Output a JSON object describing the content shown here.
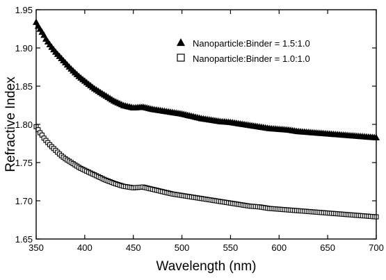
{
  "chart_data": {
    "type": "scatter",
    "title": "",
    "xlabel": "Wavelength (nm)",
    "ylabel": "Refractive Index",
    "xlim": [
      350,
      700
    ],
    "ylim": [
      1.65,
      1.95
    ],
    "xticks": [
      350,
      400,
      450,
      500,
      550,
      600,
      650,
      700
    ],
    "yticks": [
      1.65,
      1.7,
      1.75,
      1.8,
      1.85,
      1.9,
      1.95
    ],
    "legend_position": "top-right",
    "grid": false,
    "series": [
      {
        "name": "Nanoparticle:Binder = 1.5:1.0",
        "marker": "filled-triangle",
        "color": "#000000",
        "x": [
          350,
          352,
          354,
          356,
          358,
          360,
          365,
          370,
          375,
          380,
          385,
          390,
          395,
          400,
          410,
          420,
          430,
          440,
          450,
          460,
          470,
          480,
          490,
          500,
          510,
          520,
          530,
          540,
          550,
          560,
          570,
          580,
          590,
          600,
          610,
          620,
          630,
          640,
          650,
          660,
          670,
          680,
          690,
          700
        ],
        "y": [
          1.934,
          1.929,
          1.925,
          1.921,
          1.917,
          1.912,
          1.903,
          1.895,
          1.888,
          1.881,
          1.874,
          1.868,
          1.862,
          1.857,
          1.847,
          1.839,
          1.831,
          1.825,
          1.822,
          1.823,
          1.82,
          1.818,
          1.816,
          1.814,
          1.811,
          1.808,
          1.806,
          1.804,
          1.803,
          1.801,
          1.799,
          1.797,
          1.795,
          1.794,
          1.793,
          1.791,
          1.79,
          1.789,
          1.788,
          1.787,
          1.786,
          1.785,
          1.784,
          1.783
        ]
      },
      {
        "name": "Nanoparticle:Binder = 1.0:1.0",
        "marker": "open-square",
        "color": "#000000",
        "x": [
          350,
          352,
          354,
          356,
          358,
          360,
          365,
          370,
          375,
          380,
          385,
          390,
          395,
          400,
          410,
          420,
          430,
          440,
          450,
          460,
          470,
          480,
          490,
          500,
          510,
          520,
          530,
          540,
          550,
          560,
          570,
          580,
          590,
          600,
          610,
          620,
          630,
          640,
          650,
          660,
          670,
          680,
          690,
          700
        ],
        "y": [
          1.797,
          1.793,
          1.789,
          1.786,
          1.782,
          1.779,
          1.772,
          1.766,
          1.76,
          1.755,
          1.751,
          1.747,
          1.743,
          1.74,
          1.734,
          1.728,
          1.723,
          1.719,
          1.717,
          1.718,
          1.715,
          1.712,
          1.709,
          1.707,
          1.705,
          1.703,
          1.701,
          1.699,
          1.697,
          1.695,
          1.693,
          1.692,
          1.69,
          1.689,
          1.688,
          1.687,
          1.686,
          1.685,
          1.684,
          1.683,
          1.682,
          1.681,
          1.68,
          1.679
        ]
      }
    ]
  }
}
